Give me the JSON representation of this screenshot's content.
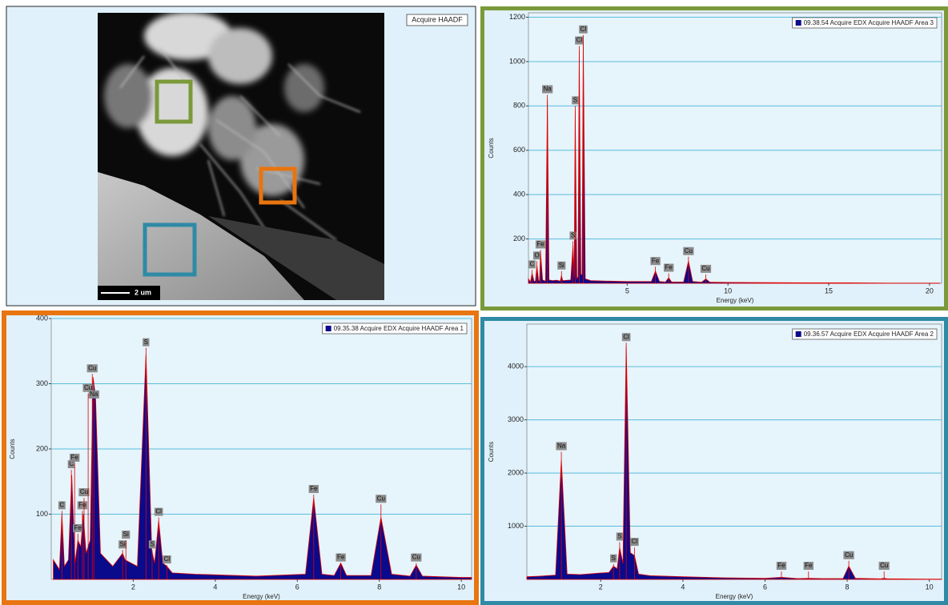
{
  "image_panel": {
    "label": "Acquire HAADF",
    "scale_bar": "2 um"
  },
  "chart_data": [
    {
      "type": "area",
      "frame_color": "#7a9a3a",
      "x_label": "Energy (keV)",
      "y_label": "Counts",
      "xlim": [
        0.1,
        20.6
      ],
      "ylim": [
        0,
        1220
      ],
      "xticks": [
        5,
        10,
        15,
        20
      ],
      "yticks": [
        200,
        400,
        600,
        800,
        1000,
        1200
      ],
      "grid": true,
      "legend_position": "top-right",
      "line_color": "#e00000",
      "x": [
        0.1,
        0.2,
        0.28,
        0.38,
        0.45,
        0.52,
        0.6,
        0.65,
        0.7,
        0.8,
        0.95,
        1.04,
        1.12,
        1.3,
        1.5,
        1.68,
        1.74,
        1.8,
        2.2,
        2.31,
        2.37,
        2.42,
        2.5,
        2.56,
        2.62,
        2.7,
        2.76,
        2.82,
        2.92,
        3.2,
        4,
        5,
        6.2,
        6.4,
        6.6,
        6.9,
        7.06,
        7.2,
        7.8,
        8.04,
        8.25,
        8.7,
        8.9,
        9.1,
        10,
        12,
        14,
        16,
        18,
        20,
        20.5
      ],
      "series": [
        {
          "name": "09.38.54 Acquire EDX Acquire HAADF Area 3",
          "color": "#0a0a8c",
          "values": [
            20,
            5,
            45,
            8,
            10,
            80,
            12,
            10,
            140,
            15,
            10,
            830,
            15,
            12,
            14,
            10,
            35,
            12,
            15,
            170,
            30,
            780,
            20,
            30,
            1050,
            40,
            40,
            1100,
            20,
            12,
            10,
            8,
            8,
            55,
            8,
            6,
            25,
            6,
            6,
            100,
            8,
            5,
            20,
            5,
            4,
            3,
            2,
            2,
            1,
            1,
            1
          ]
        }
      ],
      "annotations": [
        {
          "text": "C",
          "x": 0.28,
          "y": 60
        },
        {
          "text": "O",
          "x": 0.52,
          "y": 100
        },
        {
          "text": "Fe",
          "x": 0.7,
          "y": 150
        },
        {
          "text": "Na",
          "x": 1.04,
          "y": 850
        },
        {
          "text": "Si",
          "x": 1.74,
          "y": 55
        },
        {
          "text": "S",
          "x": 2.31,
          "y": 190
        },
        {
          "text": "S",
          "x": 2.42,
          "y": 800
        },
        {
          "text": "Cl",
          "x": 2.62,
          "y": 1070
        },
        {
          "text": "Cl",
          "x": 2.82,
          "y": 1120
        },
        {
          "text": "Fe",
          "x": 6.4,
          "y": 75
        },
        {
          "text": "Fe",
          "x": 7.06,
          "y": 45
        },
        {
          "text": "Cu",
          "x": 8.04,
          "y": 120
        },
        {
          "text": "Cu",
          "x": 8.9,
          "y": 40
        }
      ]
    },
    {
      "type": "area",
      "frame_color": "#e8750f",
      "x_label": "Energy (keV)",
      "y_label": "Counts",
      "xlim": [
        0,
        10.25
      ],
      "ylim": [
        0,
        400
      ],
      "xticks": [
        2,
        4,
        6,
        8,
        10
      ],
      "yticks": [
        100,
        200,
        300,
        400
      ],
      "grid": true,
      "legend_position": "top-right",
      "line_color": "#e00000",
      "x": [
        0.05,
        0.2,
        0.26,
        0.32,
        0.42,
        0.5,
        0.58,
        0.65,
        0.72,
        0.78,
        0.85,
        0.95,
        1.02,
        1.08,
        1.2,
        1.5,
        1.68,
        1.74,
        1.8,
        2.1,
        2.31,
        2.45,
        2.52,
        2.62,
        2.72,
        2.82,
        2.95,
        3.5,
        5,
        6.2,
        6.4,
        6.6,
        6.9,
        7.06,
        7.2,
        7.8,
        8.04,
        8.3,
        8.75,
        8.9,
        9.05,
        10,
        10.25
      ],
      "series": [
        {
          "name": "09.35.38 Acquire EDX Acquire HAADF Area 1",
          "color": "#0a0a8c",
          "values": [
            30,
            15,
            100,
            20,
            30,
            160,
            25,
            60,
            50,
            100,
            40,
            60,
            310,
            280,
            40,
            20,
            35,
            40,
            30,
            20,
            345,
            45,
            25,
            90,
            25,
            20,
            10,
            8,
            5,
            8,
            125,
            8,
            6,
            25,
            6,
            6,
            95,
            8,
            5,
            22,
            5,
            3,
            3
          ]
        }
      ],
      "annotations": [
        {
          "text": "C",
          "x": 0.26,
          "y": 105
        },
        {
          "text": "C",
          "x": 0.49,
          "y": 168
        },
        {
          "text": "Fe",
          "x": 0.57,
          "y": 178
        },
        {
          "text": "Fe",
          "x": 0.65,
          "y": 70
        },
        {
          "text": "Fe",
          "x": 0.76,
          "y": 105
        },
        {
          "text": "Cu",
          "x": 0.8,
          "y": 125
        },
        {
          "text": "Cu",
          "x": 0.9,
          "y": 285
        },
        {
          "text": "Cu",
          "x": 1.0,
          "y": 315
        },
        {
          "text": "Na",
          "x": 1.04,
          "y": 275
        },
        {
          "text": "Si",
          "x": 1.74,
          "y": 45
        },
        {
          "text": "Si",
          "x": 1.82,
          "y": 60
        },
        {
          "text": "S",
          "x": 2.31,
          "y": 355
        },
        {
          "text": "S",
          "x": 2.46,
          "y": 45
        },
        {
          "text": "Cl",
          "x": 2.62,
          "y": 95
        },
        {
          "text": "Cl",
          "x": 2.82,
          "y": 22
        },
        {
          "text": "Fe",
          "x": 6.4,
          "y": 130
        },
        {
          "text": "Fe",
          "x": 7.06,
          "y": 25
        },
        {
          "text": "Cu",
          "x": 8.04,
          "y": 115
        },
        {
          "text": "Cu",
          "x": 8.9,
          "y": 25
        }
      ]
    },
    {
      "type": "area",
      "frame_color": "#2f8aa6",
      "x_label": "Energy (keV)",
      "y_label": "Counts",
      "xlim": [
        0.2,
        10.3
      ],
      "ylim": [
        0,
        4800
      ],
      "xticks": [
        2,
        4,
        6,
        8,
        10
      ],
      "yticks": [
        1000,
        2000,
        3000,
        4000
      ],
      "grid": true,
      "legend_position": "top-right",
      "line_color": "#e00000",
      "x": [
        0.2,
        0.5,
        0.9,
        1.04,
        1.18,
        1.5,
        2.0,
        2.2,
        2.31,
        2.4,
        2.46,
        2.54,
        2.62,
        2.72,
        2.82,
        2.92,
        3.2,
        4,
        5,
        6,
        6.4,
        6.8,
        7.06,
        7.4,
        7.9,
        8.04,
        8.2,
        8.8,
        8.9,
        9.0,
        10,
        10.3
      ],
      "series": [
        {
          "name": "09.36.57 Acquire EDX Acquire HAADF Area 2",
          "color": "#0a0a8c",
          "values": [
            50,
            60,
            80,
            2250,
            100,
            90,
            120,
            130,
            250,
            200,
            600,
            300,
            4400,
            500,
            450,
            100,
            70,
            50,
            30,
            20,
            40,
            15,
            20,
            15,
            15,
            250,
            20,
            10,
            20,
            10,
            5,
            5
          ]
        }
      ],
      "annotations": [
        {
          "text": "Na",
          "x": 1.04,
          "y": 2400
        },
        {
          "text": "Cl",
          "x": 2.62,
          "y": 4450
        },
        {
          "text": "S",
          "x": 2.31,
          "y": 290
        },
        {
          "text": "S",
          "x": 2.46,
          "y": 700
        },
        {
          "text": "Cl",
          "x": 2.82,
          "y": 600
        },
        {
          "text": "Fe",
          "x": 6.4,
          "y": 150
        },
        {
          "text": "Fe",
          "x": 7.06,
          "y": 150
        },
        {
          "text": "Cu",
          "x": 8.04,
          "y": 350
        },
        {
          "text": "Cu",
          "x": 8.9,
          "y": 150
        }
      ]
    }
  ]
}
